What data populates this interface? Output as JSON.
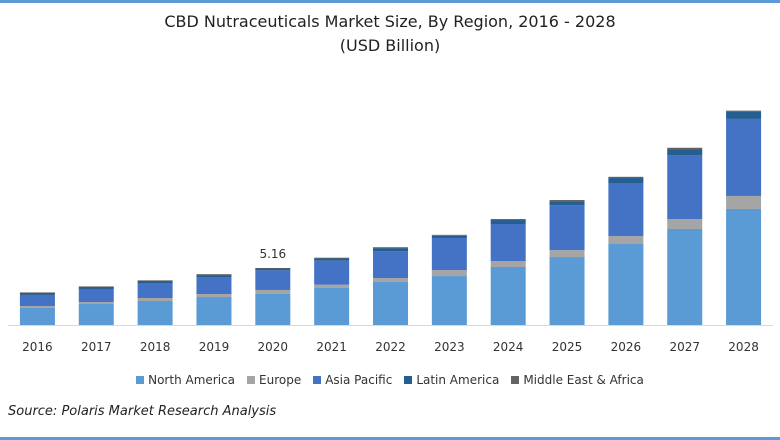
{
  "chart_data": {
    "type": "bar",
    "stacked": true,
    "title": "CBD Nutraceuticals Market Size, By Region, 2016 - 2028",
    "subtitle": "(USD Billion)",
    "xlabel": "",
    "ylabel": "",
    "ylim": [
      0,
      20
    ],
    "grid": false,
    "legend_position": "bottom",
    "categories": [
      "2016",
      "2017",
      "2018",
      "2019",
      "2020",
      "2021",
      "2022",
      "2023",
      "2024",
      "2025",
      "2026",
      "2027",
      "2028"
    ],
    "series": [
      {
        "name": "North America",
        "color": "#5b9bd5",
        "values": [
          1.54,
          1.9,
          2.17,
          2.53,
          2.81,
          3.35,
          3.89,
          4.43,
          5.25,
          6.15,
          7.33,
          8.69,
          10.5
        ]
      },
      {
        "name": "Europe",
        "color": "#a5a5a5",
        "values": [
          0.18,
          0.18,
          0.27,
          0.27,
          0.36,
          0.3,
          0.36,
          0.54,
          0.54,
          0.63,
          0.72,
          0.9,
          1.18
        ]
      },
      {
        "name": "Asia Pacific",
        "color": "#4472c4",
        "values": [
          1.0,
          1.18,
          1.36,
          1.54,
          1.78,
          2.17,
          2.44,
          2.9,
          3.35,
          4.07,
          4.8,
          5.79,
          6.97
        ]
      },
      {
        "name": "Latin America",
        "color": "#255e91",
        "values": [
          0.18,
          0.18,
          0.18,
          0.18,
          0.16,
          0.2,
          0.27,
          0.2,
          0.36,
          0.36,
          0.45,
          0.54,
          0.63
        ]
      },
      {
        "name": "Middle East & Africa",
        "color": "#636363",
        "values": [
          0.05,
          0.05,
          0.06,
          0.08,
          0.05,
          0.07,
          0.08,
          0.09,
          0.09,
          0.1,
          0.11,
          0.12,
          0.12
        ]
      }
    ],
    "annotations": [
      {
        "category": "2020",
        "text": "5.16"
      }
    ]
  },
  "source": "Source: Polaris Market Research Analysis"
}
